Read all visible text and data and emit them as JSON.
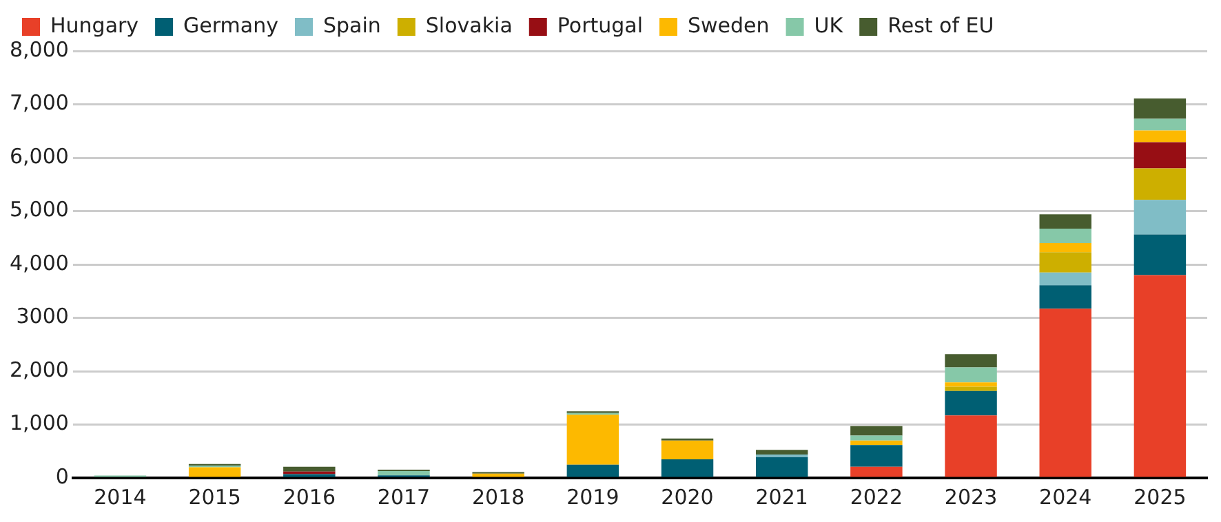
{
  "chart_data": {
    "type": "bar",
    "stacked": true,
    "legend": "top left",
    "grid": "y",
    "categories": [
      "2014",
      "2015",
      "2016",
      "2017",
      "2018",
      "2019",
      "2020",
      "2021",
      "2022",
      "2023",
      "2024",
      "2025"
    ],
    "ylim": [
      0,
      8000
    ],
    "yticks": [
      {
        "value": 0,
        "label": "0"
      },
      {
        "value": 1000,
        "label": "1,000"
      },
      {
        "value": 2000,
        "label": "2,000"
      },
      {
        "value": 3000,
        "label": "3000"
      },
      {
        "value": 4000,
        "label": "4,000"
      },
      {
        "value": 5000,
        "label": "5,000"
      },
      {
        "value": 6000,
        "label": "6,000"
      },
      {
        "value": 7000,
        "label": "7,000"
      },
      {
        "value": 8000,
        "label": "8,000"
      }
    ],
    "series": [
      {
        "name": "Hungary",
        "color": "#e84028",
        "values": [
          0,
          0,
          0,
          0,
          0,
          0,
          0,
          0,
          210,
          1170,
          3170,
          3800
        ]
      },
      {
        "name": "Germany",
        "color": "#005f73",
        "values": [
          0,
          0,
          70,
          50,
          0,
          250,
          350,
          390,
          405,
          460,
          440,
          760
        ]
      },
      {
        "name": "Spain",
        "color": "#80bdc6",
        "values": [
          0,
          0,
          0,
          0,
          0,
          0,
          0,
          50,
          0,
          0,
          240,
          650
        ]
      },
      {
        "name": "Slovakia",
        "color": "#cdaf00",
        "values": [
          0,
          0,
          0,
          0,
          0,
          0,
          0,
          0,
          0,
          80,
          380,
          590
        ]
      },
      {
        "name": "Portugal",
        "color": "#970e14",
        "values": [
          0,
          0,
          50,
          0,
          0,
          0,
          0,
          0,
          0,
          0,
          0,
          490
        ]
      },
      {
        "name": "Sweden",
        "color": "#fdb900",
        "values": [
          0,
          200,
          0,
          0,
          80,
          935,
          350,
          0,
          85,
          80,
          170,
          220
        ]
      },
      {
        "name": "UK",
        "color": "#86c8a8",
        "values": [
          45,
          30,
          0,
          80,
          0,
          30,
          0,
          0,
          95,
          280,
          270,
          220
        ]
      },
      {
        "name": "Rest of EU",
        "color": "#475c2f",
        "values": [
          0,
          30,
          90,
          25,
          30,
          35,
          40,
          85,
          175,
          250,
          270,
          380
        ]
      }
    ]
  }
}
